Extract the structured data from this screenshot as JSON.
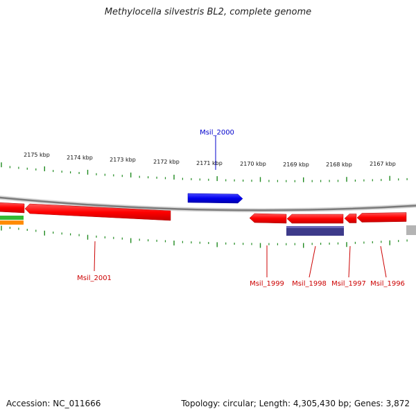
{
  "title": "Methylocella silvestris BL2, complete genome",
  "footer": {
    "accession": "Accession: NC_011666",
    "stats": "Topology: circular; Length: 4,305,430 bp; Genes: 3,872"
  },
  "colors": {
    "forward_gene": "#0000ee",
    "reverse_gene": "#ff0000",
    "navy_feature": "#3d3a8a",
    "tick": "#1f8a1f",
    "backbone": "#888888",
    "label_forward": "#0000cc",
    "label_reverse": "#cc0000"
  },
  "scale_labels": [
    {
      "label": "2175 kbp",
      "kbp": 2175
    },
    {
      "label": "2174 kbp",
      "kbp": 2174
    },
    {
      "label": "2173 kbp",
      "kbp": 2173
    },
    {
      "label": "2172 kbp",
      "kbp": 2172
    },
    {
      "label": "2171 kbp",
      "kbp": 2171
    },
    {
      "label": "2170 kbp",
      "kbp": 2170
    },
    {
      "label": "2169 kbp",
      "kbp": 2169
    },
    {
      "label": "2168 kbp",
      "kbp": 2168
    },
    {
      "label": "2167 kbp",
      "kbp": 2167
    }
  ],
  "gene_labels": {
    "Msil_2000": "Msil_2000",
    "Msil_2001": "Msil_2001",
    "Msil_1999": "Msil_1999",
    "Msil_1998": "Msil_1998",
    "Msil_1997": "Msil_1997",
    "Msil_1996": "Msil_1996"
  }
}
